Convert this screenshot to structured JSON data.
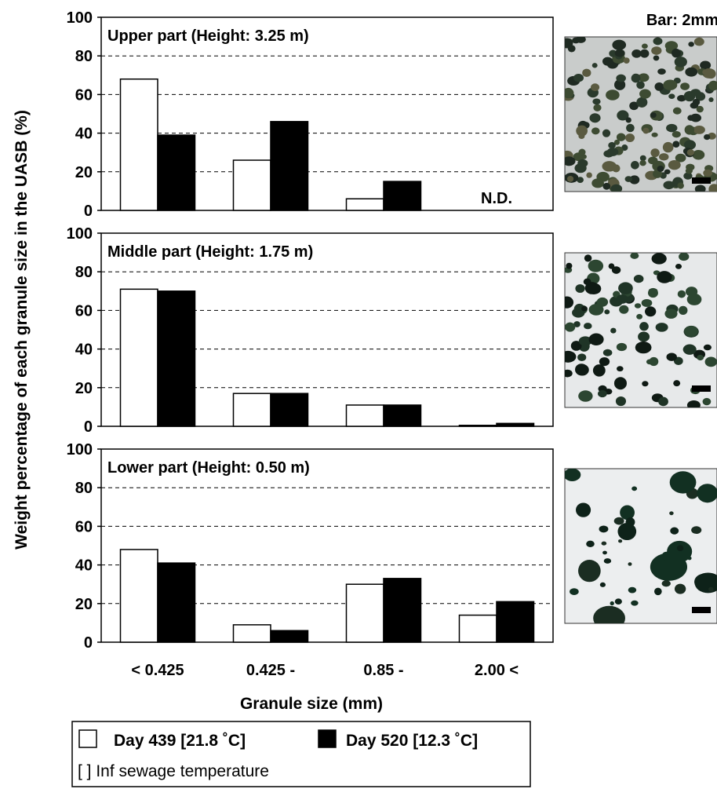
{
  "chart_data": {
    "type": "bar",
    "ylabel": "Weight percentage of each granule size in the UASB (%)",
    "xlabel": "Granule size (mm)",
    "categories": [
      "< 0.425",
      "0.425 -",
      "0.85 -",
      "2.00 <"
    ],
    "ylim": [
      0,
      100
    ],
    "yticks": [
      0,
      20,
      40,
      60,
      80,
      100
    ],
    "grid": "horizontal dashed",
    "series_colors": {
      "Day 439 [21.8 °C]": "#ffffff",
      "Day 520 [12.3 °C]": "#000000"
    },
    "panels": [
      {
        "title": "Upper part (Height: 3.25 m)",
        "series": [
          {
            "name": "Day 439 [21.8 °C]",
            "values": [
              68,
              26,
              6,
              0
            ]
          },
          {
            "name": "Day 520 [12.3 °C]",
            "values": [
              39,
              46,
              15,
              0
            ]
          }
        ],
        "annotation": "N.D."
      },
      {
        "title": "Middle part (Height: 1.75 m)",
        "series": [
          {
            "name": "Day 439 [21.8 °C]",
            "values": [
              71,
              17,
              11,
              0.5
            ]
          },
          {
            "name": "Day 520 [12.3 °C]",
            "values": [
              70,
              17,
              11,
              1.5
            ]
          }
        ],
        "annotation": ""
      },
      {
        "title": "Lower part (Height: 0.50 m)",
        "series": [
          {
            "name": "Day 439 [21.8 °C]",
            "values": [
              48,
              9,
              30,
              14
            ]
          },
          {
            "name": "Day 520 [12.3 °C]",
            "values": [
              41,
              6,
              33,
              21
            ]
          }
        ],
        "annotation": ""
      }
    ],
    "legend": {
      "placement": "bottom",
      "entries": [
        "Day 439 [21.8 ˚C]",
        "Day 520 [12.3 ˚C]"
      ],
      "note": "[ ] Inf sewage temperature"
    }
  },
  "photos": {
    "header": "Bar: 2mm",
    "items": [
      {
        "label": "upper-part-granules",
        "background": "#c9cccb",
        "particles": "many-small-dense"
      },
      {
        "label": "middle-part-granules",
        "background": "#e7e9ea",
        "particles": "medium-scattered"
      },
      {
        "label": "lower-part-granules",
        "background": "#eceeef",
        "particles": "few-large"
      }
    ]
  }
}
